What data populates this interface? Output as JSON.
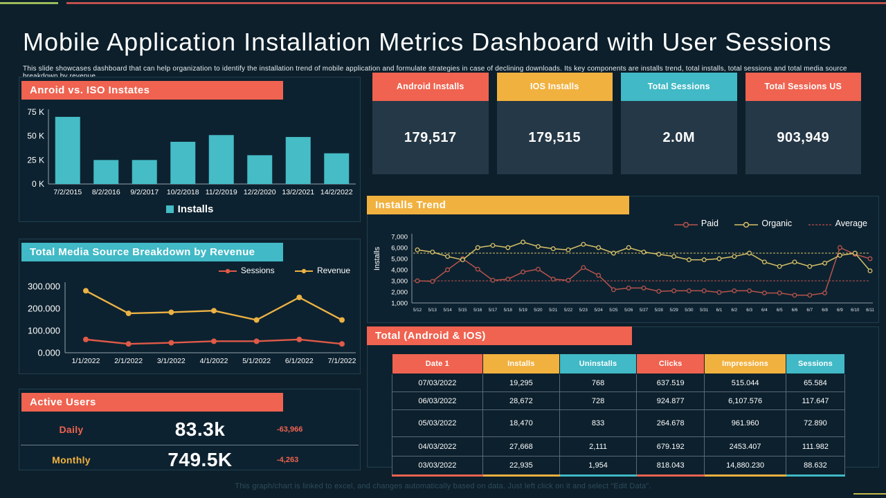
{
  "colors": {
    "background": "#0c1f2b",
    "panel": "#0d2230",
    "accent_red": "#ef6350",
    "accent_yellow": "#f1b13f",
    "accent_teal": "#41b9c6",
    "bar_teal": "#45bcc6",
    "card_body": "#253847",
    "strip_green": "#9bbb59",
    "strip_red": "#c0504d",
    "paid_line": "#b8544c",
    "organic_line": "#d9c268",
    "sessions_line": "#e05a48",
    "revenue_line": "#ecb244"
  },
  "header": {
    "title": "Mobile Application Installation Metrics Dashboard with User Sessions",
    "subtitle": "This slide showcases dashboard that can help organization to identify the installation trend of mobile application and formulate strategies in case of declining downloads. Its key components are installs trend, total installs, total sessions and total media source breakdown by revenue"
  },
  "kpis": [
    {
      "label": "Android Installs",
      "value": "179,517",
      "color": "#ef6350"
    },
    {
      "label": "IOS Installs",
      "value": "179,515",
      "color": "#f1b13f"
    },
    {
      "label": "Total Sessions",
      "value": "2.0M",
      "color": "#41b9c6"
    },
    {
      "label": "Total Sessions US",
      "value": "903,949",
      "color": "#ef6350"
    }
  ],
  "active_users": {
    "title": "Active Users",
    "rows": [
      {
        "label": "Daily",
        "value": "83.3k",
        "delta": "-63,966",
        "label_color": "#ef6350"
      },
      {
        "label": "Monthly",
        "value": "749.5K",
        "delta": "-4,263",
        "label_color": "#f1b13f"
      }
    ]
  },
  "table": {
    "title": "Total (Android & IOS)",
    "columns": [
      {
        "label": "Date 1",
        "color": "#ef6350"
      },
      {
        "label": "Installs",
        "color": "#f1b13f"
      },
      {
        "label": "Uninstalls",
        "color": "#41b9c6"
      },
      {
        "label": "Clicks",
        "color": "#ef6350"
      },
      {
        "label": "Impressions",
        "color": "#f1b13f"
      },
      {
        "label": "Sessions",
        "color": "#41b9c6"
      }
    ],
    "rows": [
      [
        "07/03/2022",
        "19,295",
        "768",
        "637.519",
        "515.044",
        "65.584"
      ],
      [
        "06/03/2022",
        "28,672",
        "728",
        "924.877",
        "6,107.576",
        "117.647"
      ],
      [
        "05/03/2022",
        "18,470",
        "833",
        "264.678",
        "961.960",
        "72.890"
      ],
      [
        "04/03/2022",
        "27,668",
        "2,111",
        "679.192",
        "2453.407",
        "111.982"
      ],
      [
        "03/03/2022",
        "22,935",
        "1,954",
        "818.043",
        "14,880.230",
        "88.632"
      ]
    ]
  },
  "footer": {
    "note": "This graph/chart is linked to excel, and changes automatically based on data. Just left click on it and select “Edit Data”."
  },
  "chart_data": [
    {
      "id": "android_ios_bar",
      "type": "bar",
      "title": "Anroid vs. ISO Instates",
      "categories": [
        "7/2/2015",
        "8/2/2016",
        "9/2/2017",
        "10/2/2018",
        "11/2/2019",
        "12/2/2020",
        "13/2/2021",
        "14/2/2022"
      ],
      "values": [
        70000,
        25000,
        25000,
        44000,
        51000,
        30000,
        49000,
        32000
      ],
      "legend": [
        "Installs"
      ],
      "bar_color": "#45bcc6",
      "ylim": [
        0,
        75000
      ],
      "ytick_values": [
        0,
        25000,
        50000,
        75000
      ],
      "ytick_labels": [
        "0 K",
        "25 K",
        "50 K",
        "75 K"
      ],
      "grid": false,
      "legend_position": "bottom"
    },
    {
      "id": "installs_trend",
      "type": "line",
      "title": "Installs Trend",
      "ylabel": "Installs",
      "average_label": "Average",
      "x": [
        "5/12",
        "5/13",
        "5/14",
        "5/15",
        "5/16",
        "5/17",
        "5/18",
        "5/19",
        "5/20",
        "5/21",
        "5/22",
        "5/23",
        "5/24",
        "5/25",
        "5/26",
        "5/27",
        "5/28",
        "5/29",
        "5/30",
        "5/31",
        "6/1",
        "6/2",
        "6/3",
        "6/4",
        "6/5",
        "6/6",
        "6/7",
        "6/8",
        "6/9",
        "6/10",
        "6/11"
      ],
      "series": [
        {
          "name": "Paid",
          "color": "#b8544c",
          "values": [
            3000,
            2950,
            4000,
            5000,
            4050,
            3050,
            3150,
            3800,
            4050,
            3150,
            3050,
            4200,
            3500,
            2200,
            2350,
            2350,
            2050,
            2100,
            2100,
            2100,
            1950,
            2100,
            2100,
            1900,
            1900,
            1700,
            1700,
            1900,
            6000,
            5400,
            5000
          ]
        },
        {
          "name": "Organic",
          "color": "#d9c268",
          "values": [
            5800,
            5600,
            5200,
            4900,
            6000,
            6200,
            6000,
            6500,
            6100,
            5900,
            5800,
            6300,
            6000,
            5500,
            6000,
            5600,
            5400,
            5200,
            4900,
            4900,
            5000,
            5200,
            5500,
            4700,
            4300,
            4700,
            4300,
            4600,
            5300,
            5500,
            3900
          ]
        }
      ],
      "average_lines": [
        {
          "series": "Paid",
          "value": 3000,
          "color": "#c0504d"
        },
        {
          "series": "Organic",
          "value": 5500,
          "color": "#d9c268"
        }
      ],
      "ylim": [
        1000,
        7000
      ],
      "ytick_step": 1000,
      "grid": false,
      "legend_position": "top-right"
    },
    {
      "id": "media_source_breakdown",
      "type": "line",
      "title": "Total Media Source Breakdown by Revenue",
      "categories": [
        "1/1/2022",
        "2/1/2022",
        "3/1/2022",
        "4/1/2022",
        "5/1/2022",
        "6/1/2022",
        "7/1/2022"
      ],
      "series": [
        {
          "name": "Sessions",
          "color": "#e05a48",
          "values": [
            60000,
            40000,
            45000,
            52000,
            52000,
            60000,
            40000
          ]
        },
        {
          "name": "Revenue",
          "color": "#ecb244",
          "values": [
            280000,
            178000,
            183000,
            190000,
            148000,
            250000,
            148000
          ]
        }
      ],
      "ylim": [
        0,
        300000
      ],
      "ytick_values": [
        0,
        100000,
        200000,
        300000
      ],
      "ytick_labels": [
        "0.000",
        "100.000",
        "200.000",
        "300.000"
      ],
      "grid": false,
      "legend_position": "top-right"
    }
  ]
}
